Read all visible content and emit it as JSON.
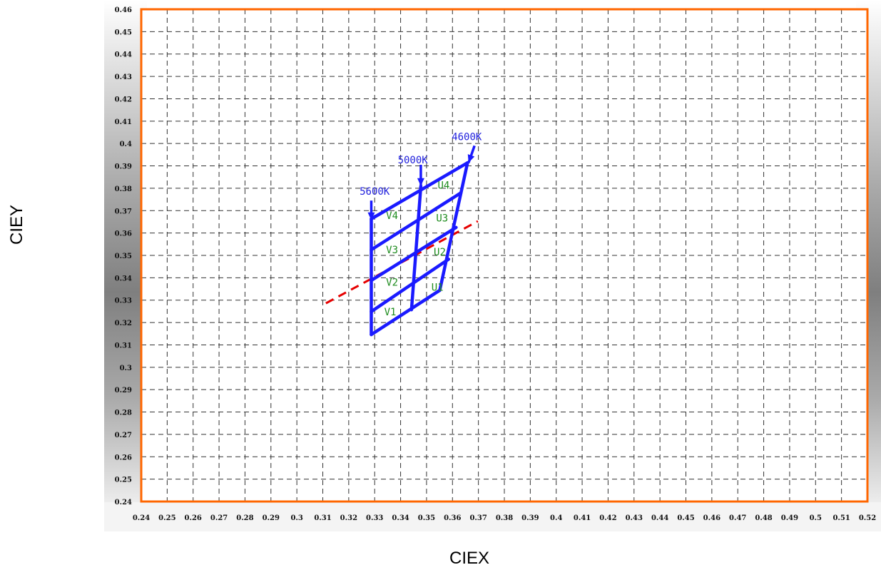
{
  "chart_data": {
    "type": "line",
    "xlabel": "CIEX",
    "ylabel": "CIEY",
    "xlim": [
      0.24,
      0.52
    ],
    "ylim": [
      0.24,
      0.46
    ],
    "x_ticks": [
      "0.24",
      "0.25",
      "0.26",
      "0.27",
      "0.28",
      "0.29",
      "0.3",
      "0.31",
      "0.32",
      "0.33",
      "0.34",
      "0.35",
      "0.36",
      "0.37",
      "0.38",
      "0.39",
      "0.4",
      "0.41",
      "0.42",
      "0.43",
      "0.44",
      "0.45",
      "0.46",
      "0.47",
      "0.48",
      "0.49",
      "0.5",
      "0.51",
      "0.52"
    ],
    "y_ticks": [
      "0.24",
      "0.25",
      "0.26",
      "0.27",
      "0.28",
      "0.29",
      "0.3",
      "0.31",
      "0.32",
      "0.33",
      "0.34",
      "0.35",
      "0.36",
      "0.37",
      "0.38",
      "0.39",
      "0.4",
      "0.41",
      "0.42",
      "0.43",
      "0.44",
      "0.45",
      "0.46"
    ],
    "grid": true,
    "colors": {
      "frame": "#ff6600",
      "bins": "#1a1aff",
      "dashed_line": "#e60000",
      "bin_labels": "#1f8c1f",
      "cct_labels": "#2222dd"
    },
    "bin_lines": [
      {
        "points": [
          [
            0.3287,
            0.3146
          ],
          [
            0.3287,
            0.3663
          ]
        ]
      },
      {
        "points": [
          [
            0.3442,
            0.3257
          ],
          [
            0.3478,
            0.3809
          ]
        ]
      },
      {
        "points": [
          [
            0.3551,
            0.3344
          ],
          [
            0.3658,
            0.3914
          ]
        ]
      },
      {
        "points": [
          [
            0.3287,
            0.3146
          ],
          [
            0.3551,
            0.3344
          ]
        ]
      },
      {
        "points": [
          [
            0.3287,
            0.3249
          ],
          [
            0.3585,
            0.3483
          ]
        ]
      },
      {
        "points": [
          [
            0.3287,
            0.3388
          ],
          [
            0.3614,
            0.3625
          ]
        ]
      },
      {
        "points": [
          [
            0.3287,
            0.3525
          ],
          [
            0.3633,
            0.378
          ]
        ]
      },
      {
        "points": [
          [
            0.3287,
            0.3663
          ],
          [
            0.3658,
            0.3914
          ]
        ]
      }
    ],
    "dashed_line": {
      "points": [
        [
          0.3112,
          0.3286
        ],
        [
          0.3698,
          0.3653
        ]
      ]
    },
    "arrows": [
      {
        "from": [
          0.3287,
          0.3745
        ],
        "to": [
          0.3287,
          0.3657
        ]
      },
      {
        "from": [
          0.3478,
          0.3905
        ],
        "to": [
          0.3478,
          0.381
        ]
      },
      {
        "from": [
          0.3685,
          0.399
        ],
        "to": [
          0.3662,
          0.3914
        ]
      }
    ],
    "cct_labels": [
      {
        "text": "5600K",
        "x": 0.33,
        "y": 0.3771
      },
      {
        "text": "5000K",
        "x": 0.3447,
        "y": 0.3912
      },
      {
        "text": "4600K",
        "x": 0.3655,
        "y": 0.4015
      }
    ],
    "bin_labels": [
      {
        "text": "V1",
        "x": 0.336,
        "y": 0.3232
      },
      {
        "text": "V2",
        "x": 0.3367,
        "y": 0.3365
      },
      {
        "text": "V3",
        "x": 0.3367,
        "y": 0.351
      },
      {
        "text": "V4",
        "x": 0.3367,
        "y": 0.3662
      },
      {
        "text": "U1",
        "x": 0.3542,
        "y": 0.3342
      },
      {
        "text": "U2",
        "x": 0.3551,
        "y": 0.35
      },
      {
        "text": "U3",
        "x": 0.356,
        "y": 0.3652
      },
      {
        "text": "U4",
        "x": 0.3566,
        "y": 0.3798
      }
    ]
  }
}
